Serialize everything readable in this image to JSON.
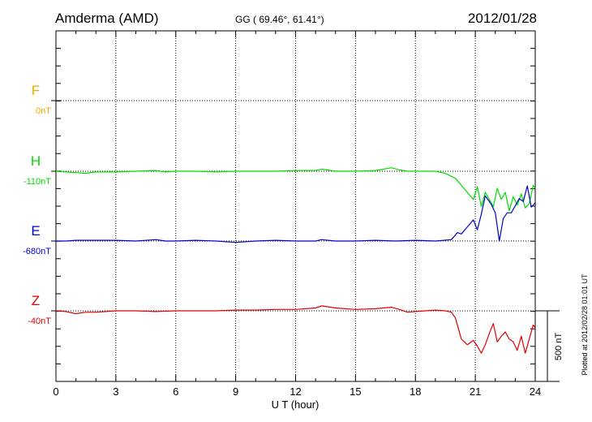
{
  "header": {
    "station": "Amderma (AMD)",
    "coords": "GG ( 69.46°,  61.41°)",
    "date": "2012/01/28"
  },
  "footer": {
    "plotted": "Plotted at 2012/02/28 01:01 UT"
  },
  "colors": {
    "F": "#f5a800",
    "H": "#00dd00",
    "E": "#0000cc",
    "Z": "#e00000",
    "axis": "#000000"
  },
  "chart_data": {
    "type": "line",
    "xlabel": "U T (hour)",
    "xlim": [
      0,
      24
    ],
    "xticks": [
      "0",
      "3",
      "6",
      "9",
      "12",
      "15",
      "18",
      "21",
      "24"
    ],
    "scale_label": "500 nT",
    "scale_nT": 500,
    "components": [
      {
        "name": "F",
        "baseline_label": "0nT",
        "baseline_nT": 0
      },
      {
        "name": "H",
        "baseline_label": "-110nT",
        "baseline_nT": -110
      },
      {
        "name": "E",
        "baseline_label": "-680nT",
        "baseline_nT": -680
      },
      {
        "name": "Z",
        "baseline_label": "-40nT",
        "baseline_nT": -40
      }
    ],
    "series": [
      {
        "name": "H",
        "x": [
          0,
          0.5,
          1,
          1.5,
          2,
          3,
          4,
          5,
          5.5,
          6,
          7,
          8,
          9,
          10,
          11,
          12,
          13,
          13.3,
          14,
          15,
          16,
          16.8,
          17.2,
          17.6,
          18,
          19,
          19.5,
          20,
          20.3,
          20.6,
          20.9,
          21.1,
          21.3,
          21.5,
          21.7,
          21.9,
          22.1,
          22.3,
          22.5,
          22.7,
          22.9,
          23.1,
          23.3,
          23.5,
          23.7,
          23.9,
          24
        ],
        "y": [
          0,
          -5,
          -10,
          -15,
          -5,
          -5,
          0,
          5,
          -5,
          0,
          0,
          -5,
          0,
          0,
          0,
          5,
          5,
          15,
          0,
          0,
          5,
          25,
          10,
          0,
          0,
          0,
          -15,
          -50,
          -100,
          -150,
          -200,
          -110,
          -250,
          -150,
          -200,
          -250,
          -120,
          -200,
          -150,
          -280,
          -180,
          -240,
          -160,
          -260,
          -230,
          -100,
          -120
        ]
      },
      {
        "name": "E",
        "x": [
          0,
          0.5,
          1,
          2,
          3,
          4,
          5,
          5.5,
          6,
          7,
          8,
          9,
          10,
          11,
          12,
          13,
          13.3,
          14,
          15,
          16,
          17,
          18,
          19,
          19.8,
          20.1,
          20.3,
          20.6,
          20.9,
          21.1,
          21.3,
          21.5,
          21.8,
          22.0,
          22.2,
          22.4,
          22.6,
          22.8,
          23.0,
          23.2,
          23.4,
          23.6,
          23.8,
          24
        ],
        "y": [
          0,
          0,
          5,
          5,
          5,
          0,
          10,
          0,
          0,
          5,
          0,
          -10,
          0,
          5,
          0,
          0,
          10,
          0,
          0,
          5,
          0,
          5,
          0,
          10,
          60,
          50,
          100,
          150,
          80,
          190,
          320,
          260,
          200,
          0,
          160,
          200,
          200,
          250,
          300,
          280,
          390,
          240,
          270
        ]
      },
      {
        "name": "Z",
        "x": [
          0,
          0.5,
          1,
          1.5,
          2,
          3,
          4,
          5,
          6,
          7,
          8,
          9,
          10,
          11,
          12,
          13,
          13.3,
          14,
          15,
          16,
          16.8,
          17.2,
          17.6,
          18,
          19,
          19.5,
          19.8,
          20,
          20.3,
          20.6,
          20.9,
          21.1,
          21.3,
          21.5,
          21.7,
          21.9,
          22.1,
          22.3,
          22.5,
          22.7,
          22.9,
          23.1,
          23.3,
          23.5,
          23.7,
          23.9,
          24
        ],
        "y": [
          0,
          -5,
          -20,
          -10,
          -10,
          0,
          0,
          -5,
          0,
          0,
          0,
          5,
          5,
          10,
          10,
          20,
          35,
          20,
          10,
          15,
          25,
          10,
          -10,
          -5,
          5,
          0,
          -10,
          -50,
          -200,
          -240,
          -210,
          -250,
          -300,
          -240,
          -160,
          -90,
          -220,
          -180,
          -150,
          -200,
          -220,
          -280,
          -180,
          -300,
          -200,
          -100,
          -120
        ]
      }
    ]
  }
}
